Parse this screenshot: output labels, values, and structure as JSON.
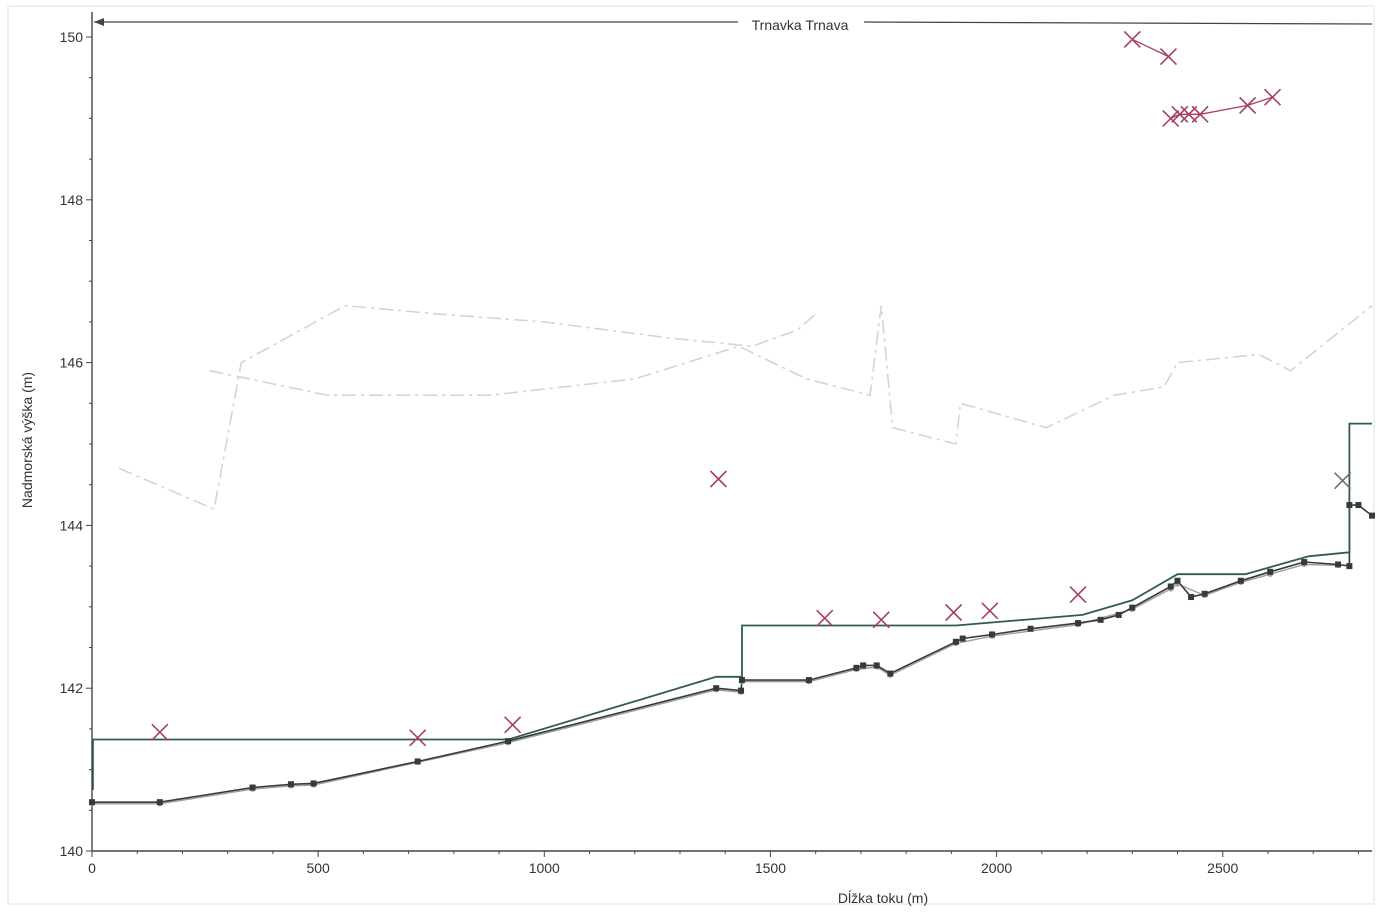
{
  "chart_data": {
    "type": "line",
    "title": "Trnavka Trnava",
    "xlabel": "Dĺžka toku (m)",
    "ylabel": "Nadmorská výška (m)",
    "xlim": [
      0,
      2830
    ],
    "ylim": [
      140,
      150.2
    ],
    "x_ticks": [
      0,
      500,
      1000,
      1500,
      2000,
      2500
    ],
    "y_ticks": [
      140,
      142,
      144,
      146,
      148,
      150
    ],
    "grid": false,
    "colors": {
      "water_surface": "#2f5a58",
      "bed_dark": "#353b3b",
      "bed_light": "#9aa0a0",
      "markers": "#a8405e",
      "bank_faint": "#d4d4d4",
      "axis": "#444444"
    },
    "series": [
      {
        "key": "water_surface",
        "points": [
          [
            2,
            140.75
          ],
          [
            2,
            141.37
          ],
          [
            920,
            141.37
          ],
          [
            1380,
            142.14
          ],
          [
            1437,
            142.14
          ],
          [
            1437,
            142.77
          ],
          [
            1910,
            142.77
          ],
          [
            2190,
            142.9
          ],
          [
            2300,
            143.08
          ],
          [
            2400,
            143.4
          ],
          [
            2550,
            143.4
          ],
          [
            2690,
            143.62
          ],
          [
            2780,
            143.67
          ],
          [
            2780,
            145.25
          ],
          [
            2830,
            145.25
          ]
        ]
      },
      {
        "key": "bed_dark",
        "points": [
          [
            0,
            140.6
          ],
          [
            150,
            140.6
          ],
          [
            355,
            140.78
          ],
          [
            440,
            140.82
          ],
          [
            490,
            140.83
          ],
          [
            720,
            141.1
          ],
          [
            920,
            141.35
          ],
          [
            1380,
            142.0
          ],
          [
            1435,
            141.97
          ],
          [
            1437,
            142.1
          ],
          [
            1585,
            142.1
          ],
          [
            1690,
            142.25
          ],
          [
            1705,
            142.28
          ],
          [
            1735,
            142.28
          ],
          [
            1765,
            142.18
          ],
          [
            1910,
            142.57
          ],
          [
            1925,
            142.61
          ],
          [
            1990,
            142.66
          ],
          [
            2075,
            142.73
          ],
          [
            2180,
            142.8
          ],
          [
            2230,
            142.84
          ],
          [
            2270,
            142.9
          ],
          [
            2300,
            142.99
          ],
          [
            2385,
            143.25
          ],
          [
            2400,
            143.32
          ],
          [
            2430,
            143.12
          ],
          [
            2460,
            143.16
          ],
          [
            2540,
            143.32
          ],
          [
            2605,
            143.43
          ],
          [
            2680,
            143.55
          ],
          [
            2755,
            143.52
          ],
          [
            2780,
            143.5
          ],
          [
            2780,
            144.25
          ],
          [
            2800,
            144.25
          ],
          [
            2830,
            144.12
          ]
        ]
      },
      {
        "key": "bed_light",
        "points": [
          [
            0,
            140.58
          ],
          [
            150,
            140.58
          ],
          [
            355,
            140.76
          ],
          [
            440,
            140.8
          ],
          [
            490,
            140.81
          ],
          [
            720,
            141.09
          ],
          [
            920,
            141.33
          ],
          [
            1380,
            141.98
          ],
          [
            1435,
            141.95
          ],
          [
            1437,
            142.08
          ],
          [
            1585,
            142.08
          ],
          [
            1690,
            142.23
          ],
          [
            1735,
            142.26
          ],
          [
            1765,
            142.16
          ],
          [
            1910,
            142.55
          ],
          [
            1990,
            142.64
          ],
          [
            2180,
            142.78
          ],
          [
            2300,
            142.97
          ],
          [
            2385,
            143.22
          ],
          [
            2400,
            143.28
          ],
          [
            2460,
            143.14
          ],
          [
            2540,
            143.3
          ],
          [
            2605,
            143.4
          ],
          [
            2680,
            143.52
          ],
          [
            2755,
            143.51
          ]
        ]
      },
      {
        "key": "markers",
        "points": [
          [
            150,
            141.46
          ],
          [
            720,
            141.39
          ],
          [
            930,
            141.55
          ],
          [
            1385,
            144.57
          ],
          [
            1620,
            142.86
          ],
          [
            1745,
            142.84
          ],
          [
            1905,
            142.93
          ],
          [
            1985,
            142.95
          ],
          [
            2180,
            143.15
          ],
          [
            2300,
            149.97
          ],
          [
            2380,
            149.76
          ],
          [
            2385,
            149.0
          ],
          [
            2405,
            149.05
          ],
          [
            2425,
            149.05
          ],
          [
            2450,
            149.05
          ],
          [
            2555,
            149.16
          ],
          [
            2610,
            149.26
          ],
          [
            2765,
            144.55
          ]
        ]
      },
      {
        "key": "bank_left_faint",
        "points": [
          [
            60,
            144.7
          ],
          [
            270,
            144.2
          ],
          [
            330,
            146.0
          ],
          [
            560,
            146.7
          ],
          [
            760,
            146.6
          ],
          [
            1000,
            146.5
          ],
          [
            1280,
            146.3
          ],
          [
            1460,
            146.2
          ],
          [
            1560,
            146.4
          ],
          [
            1600,
            146.6
          ]
        ]
      },
      {
        "key": "bank_right_faint",
        "points": [
          [
            260,
            145.9
          ],
          [
            520,
            145.6
          ],
          [
            880,
            145.6
          ],
          [
            1200,
            145.8
          ],
          [
            1430,
            146.2
          ],
          [
            1580,
            145.8
          ],
          [
            1720,
            145.6
          ],
          [
            1745,
            146.7
          ],
          [
            1770,
            145.2
          ],
          [
            1910,
            145.0
          ],
          [
            1920,
            145.5
          ],
          [
            2110,
            145.2
          ],
          [
            2260,
            145.6
          ],
          [
            2370,
            145.7
          ],
          [
            2400,
            146.0
          ],
          [
            2580,
            146.1
          ],
          [
            2650,
            145.9
          ],
          [
            2830,
            146.7
          ]
        ]
      }
    ]
  }
}
